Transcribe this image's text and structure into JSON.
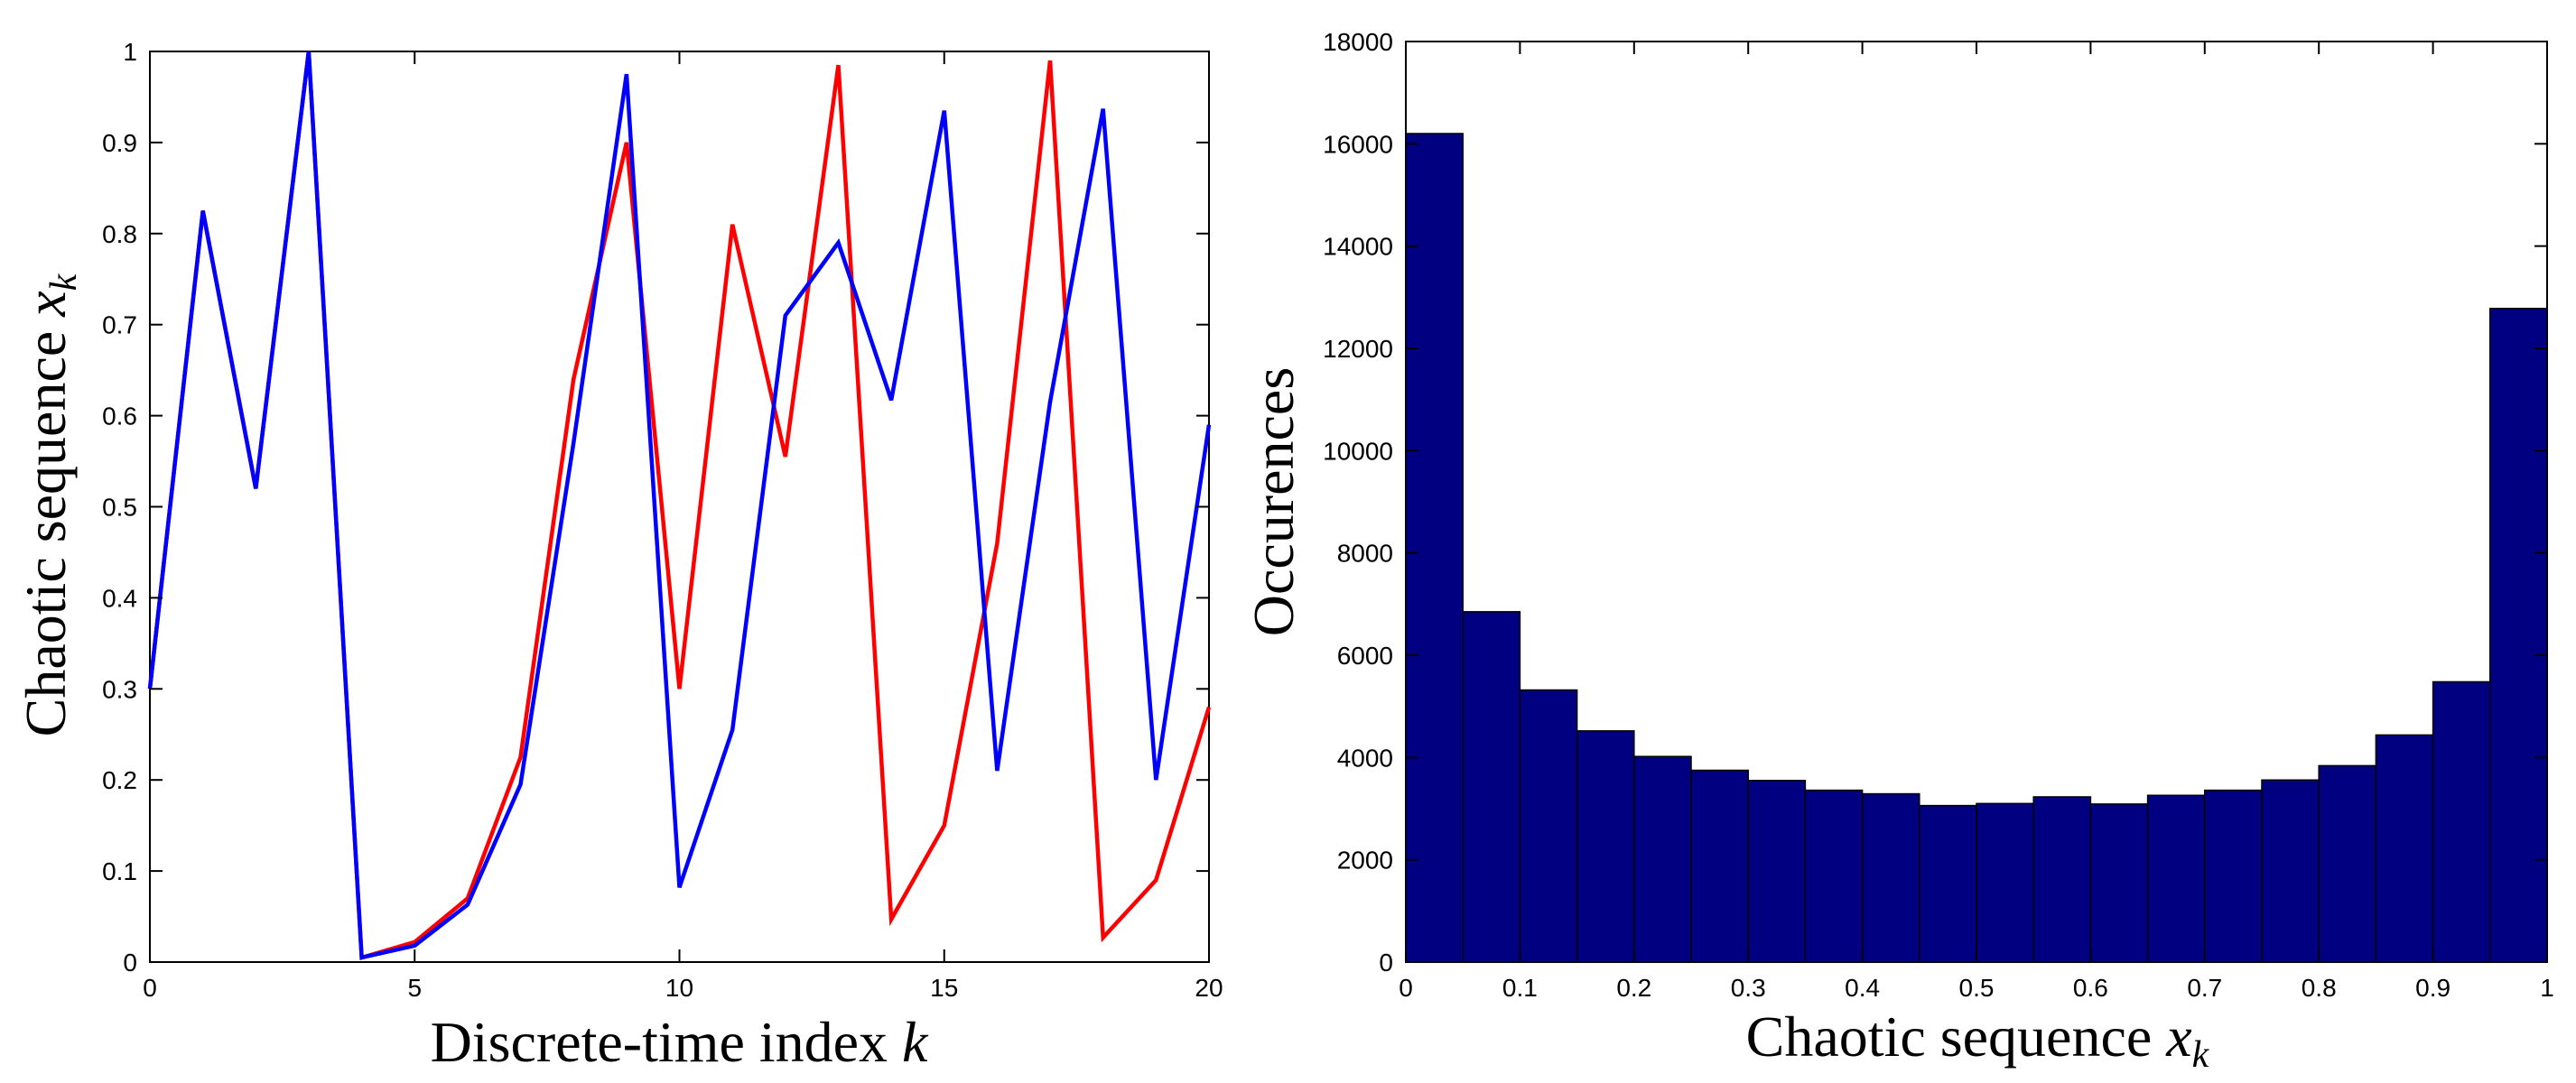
{
  "chart_data": [
    {
      "type": "line",
      "title": "",
      "xlabel": "Discrete-time index",
      "xlabel_var": "k",
      "ylabel": "Chaotic sequence",
      "ylabel_var": "x",
      "ylabel_sub": "k",
      "xlim": [
        0,
        20
      ],
      "ylim": [
        0,
        1
      ],
      "xticks": [
        "0",
        "5",
        "10",
        "15",
        "20"
      ],
      "yticks": [
        "0",
        "0.1",
        "0.2",
        "0.3",
        "0.4",
        "0.5",
        "0.6",
        "0.7",
        "0.8",
        "0.9",
        "1"
      ],
      "grid": false,
      "x": [
        0,
        1,
        2,
        3,
        4,
        5,
        6,
        7,
        8,
        9,
        10,
        11,
        12,
        13,
        14,
        15,
        16,
        17,
        18,
        19,
        20
      ],
      "series": [
        {
          "name": "red",
          "color": "#ff0000",
          "values": [
            0.3,
            0.825,
            0.52,
            1.0,
            0.005,
            0.022,
            0.07,
            0.225,
            0.64,
            0.9,
            0.3,
            0.81,
            0.555,
            0.985,
            0.047,
            0.15,
            0.46,
            0.99,
            0.027,
            0.09,
            0.28
          ]
        },
        {
          "name": "blue",
          "color": "#0000ff",
          "values": [
            0.3,
            0.825,
            0.52,
            1.0,
            0.005,
            0.018,
            0.063,
            0.195,
            0.57,
            0.975,
            0.082,
            0.255,
            0.71,
            0.79,
            0.617,
            0.935,
            0.21,
            0.615,
            0.937,
            0.2,
            0.59
          ]
        }
      ]
    },
    {
      "type": "bar",
      "title": "",
      "xlabel": "Chaotic sequence",
      "xlabel_var": "x",
      "xlabel_sub": "k",
      "ylabel": "Occurences",
      "xlim": [
        0,
        1
      ],
      "ylim": [
        0,
        18000
      ],
      "xticks": [
        "0",
        "0.1",
        "0.2",
        "0.3",
        "0.4",
        "0.5",
        "0.6",
        "0.7",
        "0.8",
        "0.9",
        "1"
      ],
      "yticks": [
        "0",
        "2000",
        "4000",
        "6000",
        "8000",
        "10000",
        "12000",
        "14000",
        "16000",
        "18000"
      ],
      "grid": false,
      "bar_color": "#000080",
      "bin_width": 0.05,
      "bin_starts": [
        0,
        0.05,
        0.1,
        0.15,
        0.2,
        0.25,
        0.3,
        0.35,
        0.4,
        0.45,
        0.5,
        0.55,
        0.6,
        0.65,
        0.7,
        0.75,
        0.8,
        0.85,
        0.9,
        0.95
      ],
      "values": [
        16200,
        6850,
        5320,
        4520,
        4020,
        3750,
        3550,
        3360,
        3290,
        3060,
        3100,
        3230,
        3090,
        3260,
        3360,
        3560,
        3840,
        4440,
        5480,
        12780
      ]
    }
  ]
}
